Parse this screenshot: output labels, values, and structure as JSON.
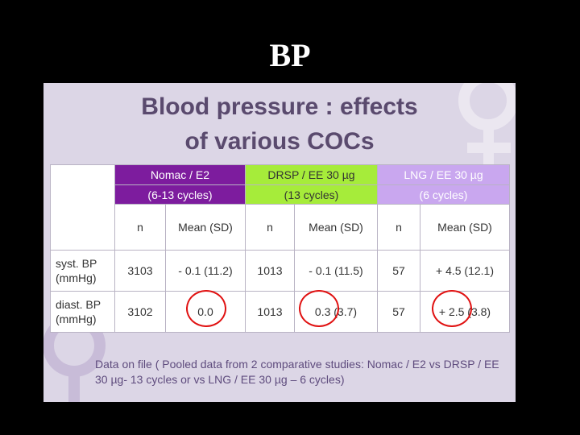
{
  "slide": {
    "title": "BP"
  },
  "panel": {
    "title_line1": "Blood pressure : effects",
    "title_line2": "of various COCs"
  },
  "table": {
    "groups": [
      {
        "name": "Nomac / E2",
        "cycles": "(6-13 cycles)",
        "color": "#7d1c9e"
      },
      {
        "name": "DRSP / EE 30 µg",
        "cycles": "(13 cycles)",
        "color": "#a6ec3a"
      },
      {
        "name": "LNG / EE 30 µg",
        "cycles": "(6 cycles)",
        "color": "#c9a7ef"
      }
    ],
    "subheaders": [
      "n",
      "Mean (SD)",
      "n",
      "Mean (SD)",
      "n",
      "Mean (SD)"
    ],
    "rows": [
      {
        "label1": "syst. BP",
        "label2": "(mmHg)",
        "cells": [
          "3103",
          "- 0.1 (11.2)",
          "1013",
          "- 0.1 (11.5)",
          "57",
          "+ 4.5 (12.1)"
        ]
      },
      {
        "label1": "diast. BP",
        "label2": "(mmHg)",
        "cells": [
          "3102",
          "0.0",
          "1013",
          "0.3 (3.7)",
          "57",
          "+ 2.5 (3.8)"
        ]
      }
    ]
  },
  "footnote": "Data on file ( Pooled data from 2 comparative studies: Nomac / E2 vs DRSP / EE 30 µg- 13 cycles or vs LNG / EE 30 µg – 6 cycles)",
  "colors": {
    "circle": "#e01010",
    "panel_bg": "#dcd6e6",
    "title": "#5a4a6e"
  }
}
